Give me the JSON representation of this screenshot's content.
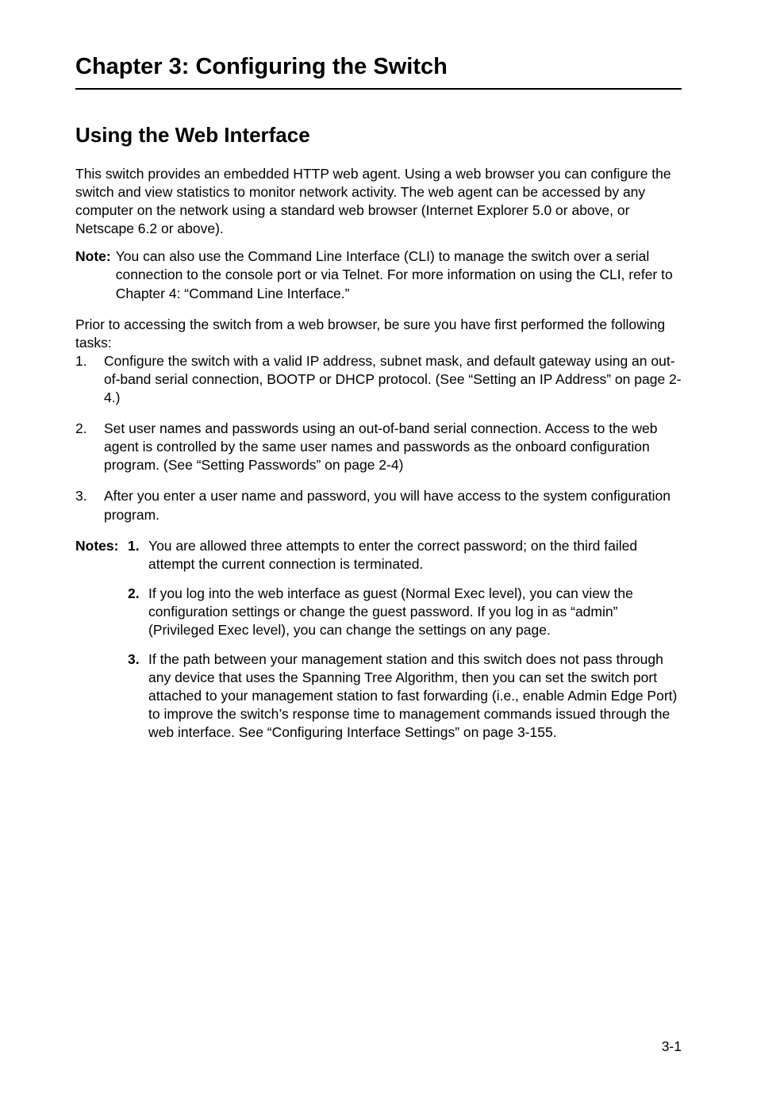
{
  "chapter": {
    "title": "Chapter 3: Configuring the Switch"
  },
  "section": {
    "title": "Using the Web Interface"
  },
  "intro": "This switch provides an embedded HTTP web agent. Using a web browser you can configure the switch and view statistics to monitor network activity. The web agent can be accessed by any computer on the network using a standard web browser (Internet Explorer 5.0 or above, or Netscape 6.2 or above).",
  "note": {
    "label": "Note:",
    "body": "You can also use the Command Line Interface (CLI) to manage the switch over a serial connection to the console port or via Telnet. For more information on using the CLI, refer to Chapter 4: “Command Line Interface.”"
  },
  "tasksIntro": "Prior to accessing the switch from a web browser, be sure you have first performed the following tasks:",
  "tasks": [
    {
      "num": "1.",
      "body": "Configure the switch with a valid IP address, subnet mask, and default gateway using an out-of-band serial connection, BOOTP or DHCP protocol. (See “Setting an IP Address” on page 2-4.)"
    },
    {
      "num": "2.",
      "body": "Set user names and passwords using an out-of-band serial connection. Access to the web agent is controlled by the same user names and passwords as the onboard configuration program. (See “Setting Passwords” on page 2-4)"
    },
    {
      "num": "3.",
      "body": "After you enter a user name and password, you will have access to the system configuration program."
    }
  ],
  "notes": {
    "label": "Notes:",
    "items": [
      {
        "num": "1.",
        "body": "You are allowed three attempts to enter the correct password; on the third failed attempt the current connection is terminated."
      },
      {
        "num": "2.",
        "body": "If you log into the web interface as guest (Normal Exec level), you can view the configuration settings or change the guest password. If you log in as “admin” (Privileged Exec level), you can change the settings on any page."
      },
      {
        "num": "3.",
        "body": "If the path between your management station and this switch does not pass through any device that uses the Spanning Tree Algorithm, then you can set the switch port attached to your management station to fast forwarding (i.e., enable Admin Edge Port) to improve the switch’s response time to management commands issued through the web interface. See “Configuring Interface Settings” on page 3-155."
      }
    ]
  },
  "pageNumber": "3-1"
}
